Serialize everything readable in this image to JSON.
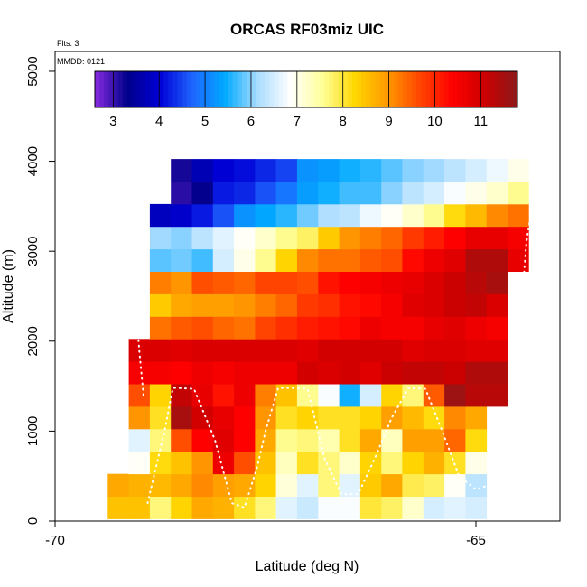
{
  "chart_data": {
    "type": "heatmap",
    "title": "ORCAS RF03miz UIC",
    "xlabel": "Latitude (deg N)",
    "ylabel": "Altitude (m)",
    "flights_note": "Flts: 3",
    "date_note": "MMDD: 0121",
    "xlim": [
      -70,
      -64
    ],
    "ylim": [
      0,
      5200
    ],
    "x_ticks": [
      -70,
      -65
    ],
    "y_ticks": [
      0,
      1000,
      2000,
      3000,
      4000,
      5000
    ],
    "colorbar": {
      "range": [
        2.6,
        11.8
      ],
      "ticks": [
        3,
        4,
        5,
        6,
        7,
        8,
        9,
        10,
        11
      ],
      "palette": [
        "#8a2be2",
        "#00008b",
        "#0000d6",
        "#1e64ff",
        "#00aaff",
        "#aadcff",
        "#ffffff",
        "#ffff99",
        "#ffd700",
        "#ff9900",
        "#ff4500",
        "#ff0000",
        "#cc0000",
        "#8b1a1a"
      ]
    },
    "lat_bins": [
      -69.25,
      -69.0,
      -68.75,
      -68.5,
      -68.25,
      -68.0,
      -67.75,
      -67.5,
      -67.25,
      -67.0,
      -66.75,
      -66.5,
      -66.25,
      -66.0,
      -65.75,
      -65.5,
      -65.25,
      -65.0,
      -64.75,
      -64.5
    ],
    "alt_bins": [
      150,
      400,
      650,
      900,
      1150,
      1400,
      1650,
      1900,
      2150,
      2400,
      2650,
      2900,
      3150,
      3400,
      3650,
      3900
    ],
    "rows": [
      [
        8.5,
        8.5,
        7.7,
        8.3,
        8.8,
        8.7,
        8.1,
        7.7,
        6.6,
        6.4,
        6.8,
        6.8,
        8.0,
        7.8,
        7.2,
        6.5,
        6.6,
        6.5,
        null,
        null
      ],
      [
        8.8,
        8.7,
        8.6,
        8.8,
        9.1,
        8.9,
        8.8,
        8.3,
        7.1,
        6.6,
        7.7,
        6.6,
        8.4,
        8.8,
        7.9,
        7.8,
        6.9,
        6.3,
        null,
        null
      ],
      [
        null,
        6.9,
        8.2,
        8.5,
        9.0,
        10.6,
        9.6,
        8.5,
        7.3,
        8.1,
        7.7,
        7.2,
        8.3,
        7.7,
        8.3,
        8.7,
        8.1,
        7.0,
        null,
        null
      ],
      [
        null,
        6.6,
        7.7,
        9.6,
        10.4,
        10.8,
        10.4,
        8.8,
        7.6,
        7.7,
        7.4,
        8.1,
        8.8,
        7.3,
        8.9,
        8.9,
        9.4,
        8.2,
        null,
        null
      ],
      [
        null,
        9.0,
        8.1,
        11.5,
        11.0,
        10.7,
        10.4,
        9.0,
        8.1,
        8.3,
        8.1,
        8.1,
        8.3,
        8.9,
        8.6,
        8.2,
        9.1,
        8.8,
        null,
        null
      ],
      [
        null,
        9.6,
        8.3,
        11.2,
        10.7,
        10.2,
        10.6,
        9.2,
        8.5,
        7.6,
        6.8,
        5.5,
        6.5,
        8.3,
        7.7,
        9.5,
        11.6,
        11.3,
        11.3,
        null
      ],
      [
        null,
        10.5,
        10.5,
        10.4,
        10.6,
        10.5,
        10.6,
        10.6,
        10.6,
        11.0,
        10.9,
        11.0,
        10.8,
        11.1,
        11.2,
        11.2,
        11.1,
        11.4,
        11.4,
        null
      ],
      [
        null,
        10.9,
        10.9,
        10.8,
        10.9,
        10.9,
        10.9,
        10.9,
        10.9,
        10.8,
        11.0,
        11.0,
        11.0,
        11.0,
        10.8,
        10.9,
        10.9,
        10.8,
        10.8,
        null
      ],
      [
        null,
        null,
        9.3,
        9.5,
        9.6,
        9.4,
        9.3,
        9.7,
        9.9,
        10.1,
        10.2,
        10.3,
        10.6,
        10.5,
        10.5,
        10.7,
        10.8,
        10.6,
        10.5,
        null
      ],
      [
        null,
        null,
        8.4,
        8.8,
        8.9,
        8.9,
        9.0,
        9.2,
        9.4,
        9.8,
        9.9,
        10.2,
        10.3,
        10.5,
        10.8,
        10.9,
        11.1,
        11.2,
        10.9,
        null
      ],
      [
        null,
        null,
        9.2,
        9.0,
        9.6,
        9.5,
        9.4,
        9.7,
        9.7,
        9.6,
        10.2,
        10.4,
        10.5,
        10.6,
        10.7,
        10.9,
        11.1,
        11.3,
        11.5,
        null
      ],
      [
        null,
        null,
        5.8,
        5.9,
        5.7,
        6.5,
        7.0,
        7.6,
        8.3,
        9.1,
        9.3,
        9.3,
        9.5,
        9.6,
        10.3,
        10.6,
        10.8,
        11.4,
        11.4,
        10.7
      ],
      [
        null,
        null,
        6.1,
        6.0,
        6.3,
        6.6,
        6.9,
        7.2,
        7.6,
        7.8,
        8.4,
        9.0,
        9.2,
        9.4,
        9.8,
        10.1,
        10.4,
        10.7,
        10.7,
        10.5
      ],
      [
        null,
        null,
        3.8,
        3.9,
        4.2,
        4.6,
        5.2,
        5.4,
        5.6,
        5.9,
        6.2,
        6.3,
        6.7,
        6.9,
        7.2,
        7.6,
        8.2,
        8.6,
        9.1,
        9.3
      ],
      [
        null,
        null,
        null,
        3.1,
        3.3,
        4.2,
        4.3,
        4.6,
        4.9,
        5.3,
        5.5,
        5.7,
        5.7,
        6.0,
        6.3,
        6.5,
        6.8,
        7.0,
        7.2,
        7.6
      ],
      [
        null,
        null,
        null,
        3.2,
        3.7,
        4.0,
        4.1,
        4.3,
        4.5,
        5.2,
        5.3,
        5.5,
        5.6,
        5.8,
        6.0,
        6.1,
        6.3,
        6.5,
        6.7,
        7.0
      ]
    ],
    "flight_track": [
      [
        -68.9,
        200
      ],
      [
        -68.8,
        600
      ],
      [
        -68.7,
        1000
      ],
      [
        -68.6,
        1480
      ],
      [
        -68.55,
        1480
      ],
      [
        -68.35,
        1470
      ],
      [
        -68.1,
        900
      ],
      [
        -67.9,
        200
      ],
      [
        -67.75,
        150
      ],
      [
        -67.6,
        600
      ],
      [
        -67.5,
        1000
      ],
      [
        -67.35,
        1480
      ],
      [
        -67.2,
        1480
      ],
      [
        -67.0,
        1470
      ],
      [
        -66.8,
        700
      ],
      [
        -66.6,
        300
      ],
      [
        -66.4,
        300
      ],
      [
        -66.2,
        700
      ],
      [
        -66.0,
        1150
      ],
      [
        -65.8,
        1480
      ],
      [
        -65.6,
        1470
      ],
      [
        -65.4,
        1000
      ],
      [
        -65.2,
        500
      ],
      [
        -65.0,
        350
      ],
      [
        -64.85,
        400
      ],
      [
        -64.7,
        700
      ],
      [
        -64.55,
        1300
      ],
      [
        -64.5,
        1900
      ],
      [
        -64.45,
        2500
      ],
      [
        -64.4,
        3100
      ],
      [
        -64.3,
        3700
      ],
      [
        -64.2,
        4000
      ]
    ],
    "flight_track_2": [
      [
        -68.95,
        1400
      ],
      [
        -69.0,
        1900
      ],
      [
        -69.05,
        2500
      ],
      [
        -69.1,
        3100
      ],
      [
        -69.15,
        3600
      ],
      [
        -69.2,
        4000
      ]
    ]
  }
}
